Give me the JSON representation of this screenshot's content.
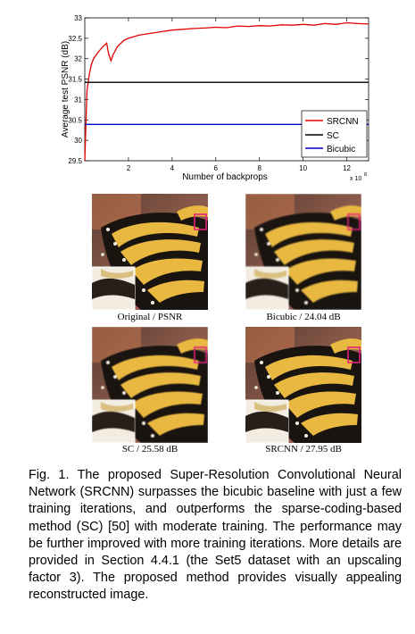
{
  "chart_data": {
    "type": "line",
    "xlabel": "Number of backprops",
    "ylabel": "Average test PSNR (dB)",
    "x_multiplier_label": "x 10",
    "x_multiplier_exponent": "8",
    "xlim": [
      0,
      13
    ],
    "ylim": [
      29.5,
      33
    ],
    "x_ticks": [
      "2",
      "4",
      "6",
      "8",
      "10",
      "12"
    ],
    "y_ticks": [
      "29.5",
      "30",
      "30.5",
      "31",
      "31.5",
      "32",
      "32.5",
      "33"
    ],
    "grid": false,
    "legend_placement": "bottom-right",
    "series": [
      {
        "name": "SRCNN",
        "color": "#e00000",
        "x": [
          0,
          0.1,
          0.2,
          0.3,
          0.4,
          0.6,
          0.8,
          1.0,
          1.1,
          1.2,
          1.3,
          1.5,
          1.8,
          2.0,
          2.3,
          2.5,
          3.0,
          3.5,
          4.0,
          4.5,
          5.0,
          5.5,
          6.0,
          6.5,
          7.0,
          7.5,
          8.0,
          8.5,
          9.0,
          9.5,
          10.0,
          10.5,
          11.0,
          11.5,
          12.0,
          12.5,
          13.0
        ],
        "y": [
          29.5,
          31.2,
          31.6,
          31.85,
          32.0,
          32.15,
          32.28,
          32.38,
          32.1,
          31.95,
          32.1,
          32.3,
          32.45,
          32.5,
          32.55,
          32.58,
          32.62,
          32.66,
          32.7,
          32.72,
          32.74,
          32.75,
          32.77,
          32.76,
          32.8,
          32.79,
          32.81,
          32.8,
          32.83,
          32.82,
          32.84,
          32.82,
          32.86,
          32.84,
          32.88,
          32.86,
          32.85
        ]
      },
      {
        "name": "SC",
        "color": "#000000",
        "x": [
          0,
          13
        ],
        "y": [
          31.42,
          31.42
        ]
      },
      {
        "name": "Bicubic",
        "color": "#0000cc",
        "x": [
          0,
          13
        ],
        "y": [
          30.39,
          30.39
        ]
      }
    ]
  },
  "panels": [
    {
      "caption": "Original / PSNR"
    },
    {
      "caption": "Bicubic / 24.04 dB"
    },
    {
      "caption": "SC / 25.58 dB"
    },
    {
      "caption": "SRCNN / 27.95 dB"
    }
  ],
  "figure_caption": "Fig. 1.   The proposed Super-Resolution Convolutional Neural Network (SRCNN) surpasses the bicubic baseline with just a few training iterations, and outperforms the sparse-coding-based method (SC) [50] with moderate training. The performance may be further improved with more training iterations. More details are provided in Section 4.4.1 (the Set5 dataset with an upscaling factor 3). The proposed method provides visually appealing reconstructed image."
}
